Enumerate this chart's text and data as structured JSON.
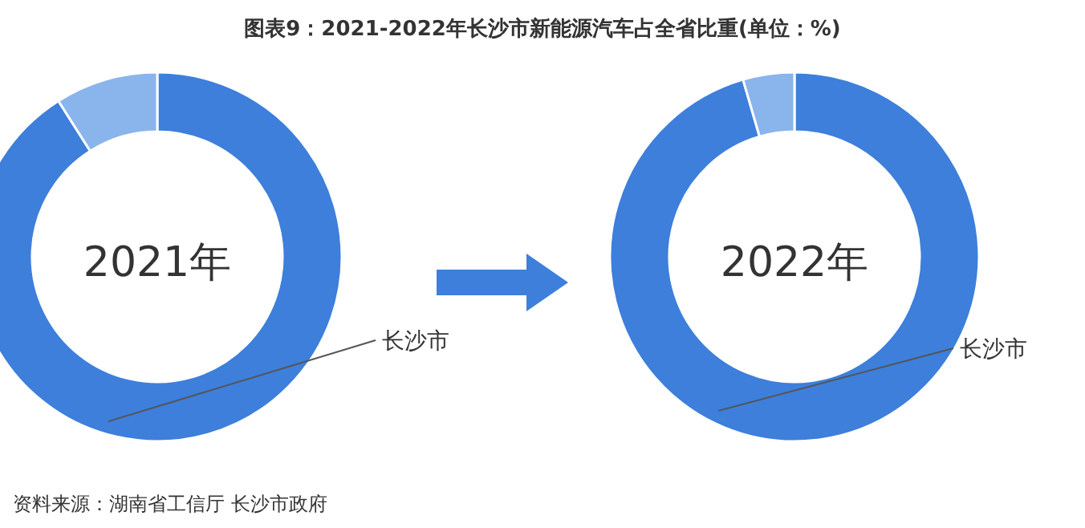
{
  "chart_data": [
    {
      "type": "donut",
      "title": "图表9：2021-2022年长沙市新能源汽车占全省比重(单位：%)",
      "categories": [
        "长沙市",
        null
      ],
      "values": [
        91,
        9
      ],
      "colors": [
        "#3d7fdb",
        "#8ab4ec"
      ],
      "annotations": [
        "2021年"
      ]
    },
    {
      "type": "donut",
      "categories": [
        "长沙市",
        null
      ],
      "values": [
        95.5,
        4.5
      ],
      "colors": [
        "#3d7fdb",
        "#8ab4ec"
      ],
      "annotations": [
        "2022年",
        "资料来源：湖南省工信厅 长沙市政府"
      ]
    }
  ]
}
